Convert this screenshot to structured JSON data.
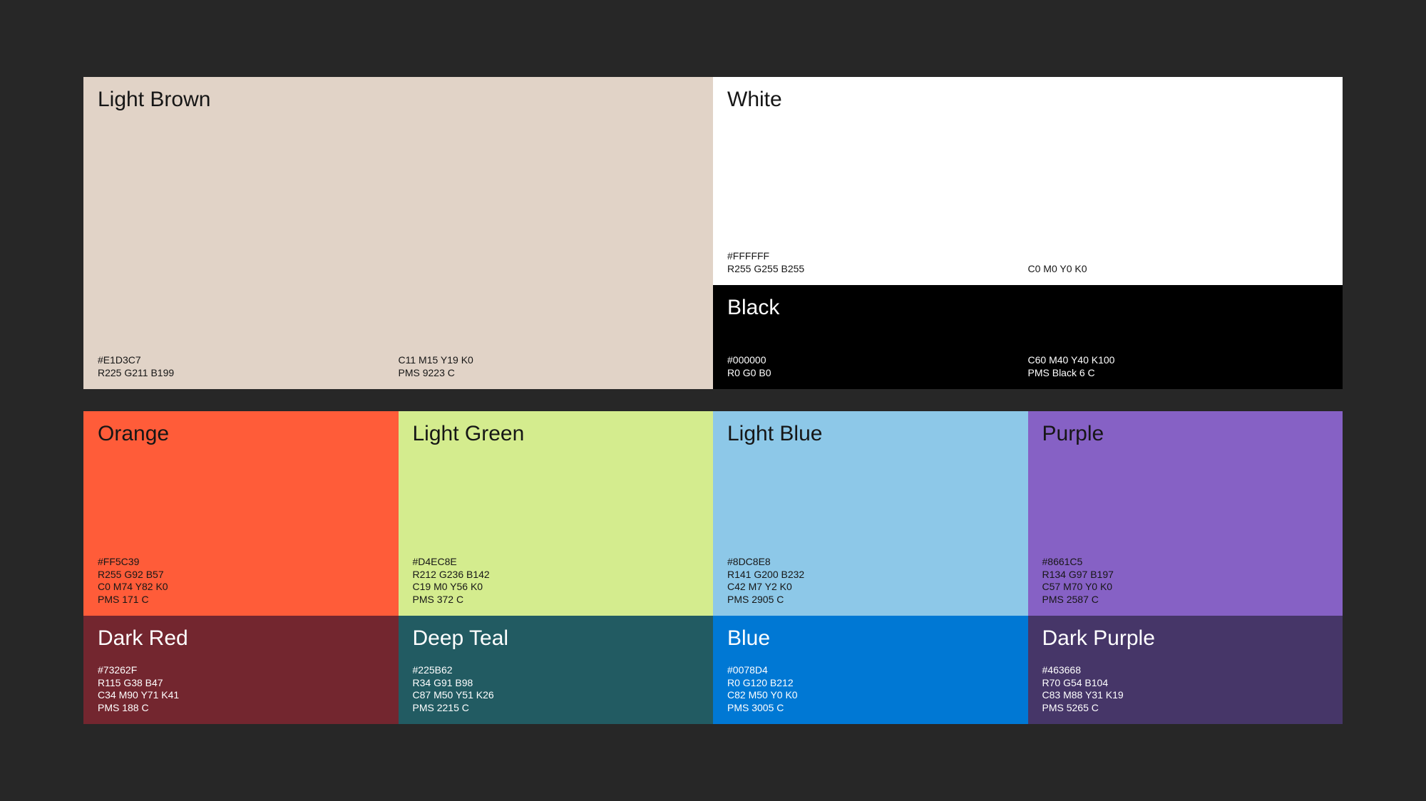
{
  "background": "#272727",
  "text_dark": "#161616",
  "text_light": "#FFFFFF",
  "palette": {
    "light_brown": {
      "name": "Light Brown",
      "hex": "#E1D3C7",
      "rgb": "R225 G211 B199",
      "cmyk": "C11 M15 Y19 K0",
      "pms": "PMS 9223 C",
      "fg": "#161616"
    },
    "white": {
      "name": "White",
      "hex": "#FFFFFF",
      "rgb": "R255 G255 B255",
      "cmyk": "C0 M0 Y0 K0",
      "fg": "#161616"
    },
    "black": {
      "name": "Black",
      "hex": "#000000",
      "rgb": "R0 G0 B0",
      "cmyk": "C60 M40 Y40 K100",
      "pms": "PMS Black 6 C",
      "fg": "#FFFFFF"
    },
    "orange": {
      "name": "Orange",
      "hex": "#FF5C39",
      "rgb": "R255 G92 B57",
      "cmyk": "C0 M74 Y82 K0",
      "pms": "PMS 171 C",
      "fg": "#161616"
    },
    "light_green": {
      "name": "Light Green",
      "hex": "#D4EC8E",
      "rgb": "R212 G236 B142",
      "cmyk": "C19 M0 Y56 K0",
      "pms": "PMS 372 C",
      "fg": "#161616"
    },
    "light_blue": {
      "name": "Light Blue",
      "hex": "#8DC8E8",
      "rgb": "R141 G200 B232",
      "cmyk": "C42 M7 Y2 K0",
      "pms": "PMS 2905 C",
      "fg": "#161616"
    },
    "purple": {
      "name": "Purple",
      "hex": "#8661C5",
      "rgb": "R134 G97 B197",
      "cmyk": "C57 M70 Y0 K0",
      "pms": "PMS 2587 C",
      "fg": "#161616"
    },
    "dark_red": {
      "name": "Dark Red",
      "hex": "#73262F",
      "rgb": "R115 G38 B47",
      "cmyk": "C34 M90 Y71 K41",
      "pms": "PMS 188 C",
      "fg": "#FFFFFF"
    },
    "deep_teal": {
      "name": "Deep Teal",
      "hex": "#225B62",
      "rgb": "R34 G91 B98",
      "cmyk": "C87 M50 Y51 K26",
      "pms": "PMS 2215 C",
      "fg": "#FFFFFF"
    },
    "blue": {
      "name": "Blue",
      "hex": "#0078D4",
      "rgb": "R0 G120 B212",
      "cmyk": "C82 M50 Y0 K0",
      "pms": "PMS 3005 C",
      "fg": "#FFFFFF"
    },
    "dark_purple": {
      "name": "Dark Purple",
      "hex": "#463668",
      "rgb": "R70 G54 B104",
      "cmyk": "C83 M88 Y31 K19",
      "pms": "PMS 5265 C",
      "fg": "#FFFFFF"
    }
  }
}
